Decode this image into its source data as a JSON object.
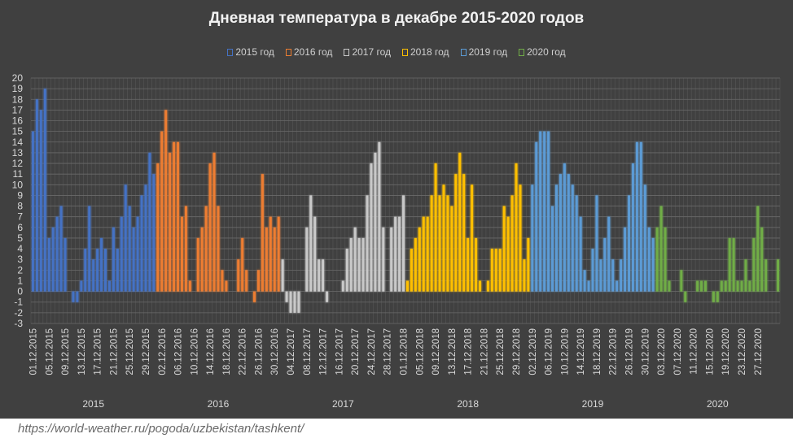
{
  "chart_data": {
    "type": "bar",
    "title": "Дневная температура в декабре 2015-2020 годов",
    "xlabel": "",
    "ylabel": "",
    "ylim": [
      -3,
      20
    ],
    "yticks": [
      20,
      19,
      18,
      17,
      16,
      15,
      14,
      13,
      12,
      11,
      10,
      9,
      8,
      7,
      6,
      5,
      4,
      3,
      2,
      1,
      0,
      -1,
      -2,
      -3
    ],
    "grid": true,
    "legend_position": "top",
    "series": [
      {
        "name": "2015 год",
        "group": "2015",
        "color": "#4472c4",
        "values": [
          15,
          18,
          17,
          19,
          5,
          6,
          7,
          8,
          5,
          0,
          -1,
          -1,
          1,
          4,
          8,
          3,
          4,
          5,
          4,
          1,
          6,
          4,
          7,
          10,
          8,
          6,
          7,
          9,
          10,
          13,
          11
        ]
      },
      {
        "name": "2016 год",
        "group": "2016",
        "color": "#ed7d31",
        "values": [
          12,
          15,
          17,
          13,
          14,
          14,
          7,
          8,
          1,
          0,
          5,
          6,
          8,
          12,
          13,
          8,
          2,
          1,
          0,
          0,
          3,
          5,
          2,
          0,
          -1,
          2,
          11,
          6,
          7,
          6,
          7
        ]
      },
      {
        "name": "2017 год",
        "group": "2017",
        "color": "#c9c9c9",
        "values": [
          3,
          -1,
          -2,
          -2,
          -2,
          0,
          6,
          9,
          7,
          3,
          3,
          -1,
          0,
          0,
          0,
          1,
          4,
          5,
          6,
          5,
          5,
          9,
          12,
          13,
          14,
          6,
          0,
          6,
          7,
          7,
          9
        ]
      },
      {
        "name": "2018 год",
        "group": "2018",
        "color": "#ffc000",
        "values": [
          1,
          4,
          5,
          6,
          7,
          7,
          9,
          12,
          9,
          10,
          9,
          8,
          11,
          13,
          11,
          5,
          10,
          5,
          1,
          0,
          1,
          4,
          4,
          4,
          8,
          7,
          9,
          12,
          10,
          3,
          5
        ]
      },
      {
        "name": "2019 год",
        "group": "2019",
        "color": "#5b9bd5",
        "values": [
          10,
          14,
          15,
          15,
          15,
          8,
          10,
          11,
          12,
          11,
          10,
          9,
          7,
          2,
          1,
          4,
          9,
          3,
          5,
          7,
          3,
          1,
          3,
          6,
          9,
          12,
          14,
          14,
          10,
          6,
          5
        ]
      },
      {
        "name": "2020 год",
        "group": "2020",
        "color": "#70ad47",
        "values": [
          6,
          8,
          6,
          1,
          0,
          0,
          2,
          -1,
          0,
          0,
          1,
          1,
          1,
          0,
          -1,
          -1,
          1,
          1,
          5,
          5,
          1,
          1,
          3,
          1,
          5,
          8,
          6,
          3,
          0,
          0,
          3
        ]
      }
    ],
    "x_tick_labels": [
      "01.12.2015",
      "05.12.2015",
      "09.12.2015",
      "13.12.2015",
      "17.12.2015",
      "21.12.2015",
      "25.12.2015",
      "29.12.2015",
      "02.12.2016",
      "06.12.2016",
      "10.12.2016",
      "14.12.2016",
      "18.12.2016",
      "22.12.2016",
      "26.12.2016",
      "30.12.2016",
      "04.12.2017",
      "08.12.2017",
      "12.12.2017",
      "16.12.2017",
      "20.12.2017",
      "24.12.2017",
      "28.12.2017",
      "01.12.2018",
      "05.12.2018",
      "09.12.2018",
      "13.12.2018",
      "17.12.2018",
      "21.12.2018",
      "25.12.2018",
      "29.12.2018",
      "02.12.2019",
      "06.12.2019",
      "10.12.2019",
      "14.12.2019",
      "18.12.2019",
      "22.12.2019",
      "26.12.2019",
      "30.12.2019",
      "03.12.2020",
      "07.12.2020",
      "11.12.2020",
      "15.12.2020",
      "19.12.2020",
      "23.12.2020",
      "27.12.2020"
    ],
    "year_labels": [
      "2015",
      "2016",
      "2017",
      "2018",
      "2019",
      "2020"
    ]
  },
  "source": "https://world-weather.ru/pogoda/uzbekistan/tashkent/"
}
